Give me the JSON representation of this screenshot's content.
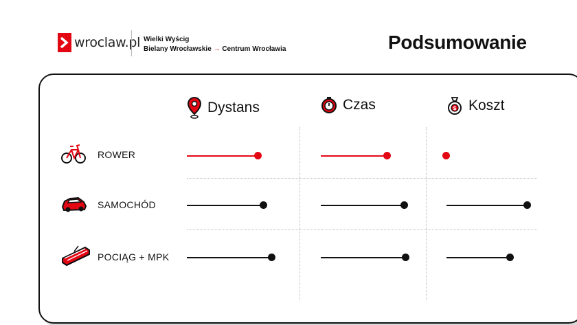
{
  "brand": {
    "logo_text": "wroclaw.pl",
    "accent": "#e30613"
  },
  "event": {
    "line1": "Wielki Wyścig",
    "line2_from": "Bielany Wrocławskie",
    "line2_arrow": "→",
    "line2_to": "Centrum Wrocławia"
  },
  "page_title": "Podsumowanie",
  "columns": [
    {
      "label": "Dystans",
      "icon": "map-pin-icon"
    },
    {
      "label": "Czas",
      "icon": "stopwatch-icon"
    },
    {
      "label": "Koszt",
      "icon": "money-bag-icon"
    }
  ],
  "rows": [
    {
      "label": "ROWER",
      "icon": "bicycle-icon",
      "color": "#e30613",
      "values": [
        0.84,
        0.78,
        0.0
      ]
    },
    {
      "label": "SAMOCHÓD",
      "icon": "car-icon",
      "color": "#111111",
      "values": [
        0.9,
        0.98,
        0.97
      ]
    },
    {
      "label": "POCIĄG + MPK",
      "icon": "tram-icon",
      "color": "#111111",
      "values": [
        1.0,
        1.0,
        0.76
      ]
    }
  ]
}
